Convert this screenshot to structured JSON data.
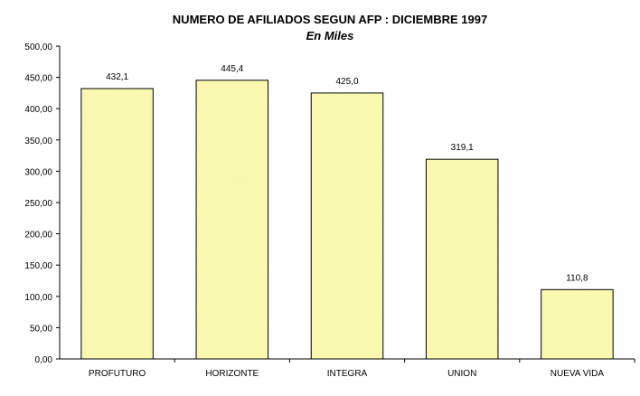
{
  "chart_data": {
    "type": "bar",
    "title": "NUMERO DE AFILIADOS SEGUN AFP : DICIEMBRE 1997",
    "subtitle": "En Miles",
    "categories": [
      "PROFUTURO",
      "HORIZONTE",
      "INTEGRA",
      "UNION",
      "NUEVA VIDA"
    ],
    "values": [
      432.1,
      445.4,
      425.0,
      319.1,
      110.8
    ],
    "value_labels": [
      "432,1",
      "445,4",
      "425,0",
      "319,1",
      "110,8"
    ],
    "ylim": [
      0,
      500
    ],
    "yticks": [
      0,
      50,
      100,
      150,
      200,
      250,
      300,
      350,
      400,
      450,
      500
    ],
    "ytick_labels": [
      "0,00",
      "50,00",
      "100,00",
      "150,00",
      "200,00",
      "250,00",
      "300,00",
      "350,00",
      "400,00",
      "450,00",
      "500,00"
    ],
    "xlabel": "",
    "ylabel": "",
    "grid": false,
    "legend": "none",
    "colors": {
      "bar_fill": "#FFFFC0",
      "bar_stroke": "#000000",
      "axis": "#000000"
    }
  }
}
